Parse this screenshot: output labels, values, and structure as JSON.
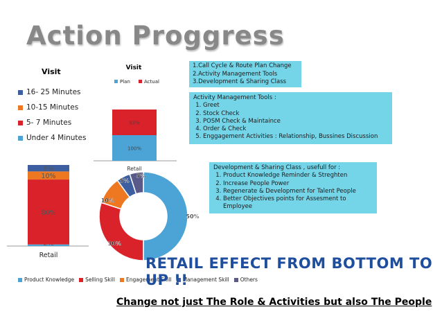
{
  "title": "Action Proggress",
  "visit_time_legend": {
    "title": "Visit",
    "items": [
      {
        "label": "16- 25 Minutes",
        "color": "#3e5f9f"
      },
      {
        "label": "10-15 Minutes",
        "color": "#ee7722"
      },
      {
        "label": "5- 7 Minutes",
        "color": "#d9222a"
      },
      {
        "label": "Under 4 Minutes",
        "color": "#4ba3d6"
      }
    ]
  },
  "action_list": {
    "items": [
      "1.Call Cycle & Route Plan Change",
      "2.Activity Management Tools",
      "3.Development & Sharing Class"
    ]
  },
  "activity_tools": {
    "heading": "Activity Management Tools :",
    "items": [
      "Greet",
      "Stock Check",
      "POSM Check & Maintaince",
      "Order & Check",
      "Enggagement Activities : Relationship, Bussines Discussion"
    ]
  },
  "development": {
    "heading": "Development & Sharing Class , usefull for :",
    "items": [
      "Product Knowledge Reminder & Streghten",
      "Increase People Power",
      "Regenerate & Development for Talent People",
      "Better Objectives points for Assesment to Employee"
    ]
  },
  "skills_legend": [
    {
      "label": "Product Knowledge",
      "color": "#4ba3d6"
    },
    {
      "label": "Selling Skill",
      "color": "#d9222a"
    },
    {
      "label": "Engagement Skill",
      "color": "#ee7722"
    },
    {
      "label": "Management Skill",
      "color": "#3e5f9f"
    },
    {
      "label": "Others",
      "color": "#5a5a8a"
    }
  ],
  "retail_effect": "RETAIL EFFECT FROM BOTTOM TO UP !!",
  "change_text": "Change not just The Role & Activities but also The People",
  "chart_data": [
    {
      "type": "bar",
      "stacked": true,
      "title": "",
      "categories": [
        "Retail"
      ],
      "series": [
        {
          "name": "Under 4 Minutes",
          "values": [
            2
          ],
          "label": "2%",
          "color": "#4ba3d6"
        },
        {
          "name": "5- 7 Minutes",
          "values": [
            80
          ],
          "label": "80%",
          "color": "#d9222a"
        },
        {
          "name": "10-15 Minutes",
          "values": [
            10
          ],
          "label": "10%",
          "color": "#ee7722"
        },
        {
          "name": "16- 25 Minutes",
          "values": [
            8
          ],
          "label": "8%",
          "color": "#3e5f9f"
        }
      ],
      "ylim": [
        0,
        100
      ]
    },
    {
      "type": "bar",
      "stacked": true,
      "title": "Visit",
      "categories": [
        "Retail"
      ],
      "series": [
        {
          "name": "Plan",
          "values": [
            100
          ],
          "label": "100%",
          "color": "#4ba3d6"
        },
        {
          "name": "Actual",
          "values": [
            93
          ],
          "label": "93%",
          "color": "#d9222a"
        }
      ],
      "legend_position": "top"
    },
    {
      "type": "pie",
      "donut": true,
      "labels": [
        "Product Knowledge",
        "Selling Skill",
        "Engagement Skill",
        "Management Skill",
        "Others"
      ],
      "values": [
        50,
        30,
        10,
        5,
        5
      ],
      "value_labels": [
        "50%",
        "30%",
        "10%",
        "5%",
        "5%"
      ],
      "colors": [
        "#4ba3d6",
        "#d9222a",
        "#ee7722",
        "#3e5f9f",
        "#5a5a8a"
      ],
      "legend_position": "bottom"
    }
  ]
}
